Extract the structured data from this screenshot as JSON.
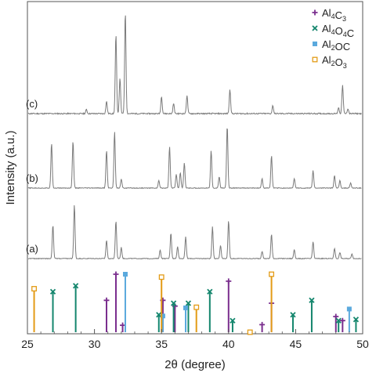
{
  "chart_data": {
    "type": "line",
    "xlabel": "2θ (degree)",
    "ylabel": "Intensity (a.u.)",
    "xlim": [
      25,
      50
    ],
    "x_ticks": [
      "25",
      "30",
      "35",
      "40",
      "45",
      "50"
    ],
    "y_ticks_shown": false,
    "legend_position": "top-right",
    "legend": [
      {
        "key": "al4c3",
        "label_parts": [
          "Al",
          "4",
          "C",
          "3"
        ],
        "marker": "plus",
        "color": "#7a2e8e"
      },
      {
        "key": "al4o4c",
        "label_parts": [
          "Al",
          "4",
          "O",
          "4",
          "C"
        ],
        "marker": "x",
        "color": "#14866d"
      },
      {
        "key": "al2oc",
        "label_parts": [
          "Al",
          "2",
          "OC"
        ],
        "marker": "square-filled",
        "color": "#5aa9dd"
      },
      {
        "key": "al2o3",
        "label_parts": [
          "Al",
          "2",
          "O",
          "3"
        ],
        "marker": "square-open",
        "color": "#e39b16"
      }
    ],
    "series": [
      {
        "name": "(c)",
        "label": "(c)",
        "peaks": [
          [
            29.4,
            0.04
          ],
          [
            30.9,
            0.12
          ],
          [
            31.6,
            0.78
          ],
          [
            31.9,
            0.35
          ],
          [
            32.3,
            1.0
          ],
          [
            35.0,
            0.17
          ],
          [
            35.9,
            0.1
          ],
          [
            36.9,
            0.18
          ],
          [
            40.1,
            0.24
          ],
          [
            43.3,
            0.08
          ],
          [
            48.2,
            0.06
          ],
          [
            48.5,
            0.28
          ],
          [
            48.9,
            0.05
          ]
        ]
      },
      {
        "name": "(b)",
        "label": "(b)",
        "peaks": [
          [
            26.8,
            0.72
          ],
          [
            28.4,
            0.75
          ],
          [
            30.9,
            0.6
          ],
          [
            31.5,
            0.9
          ],
          [
            32.0,
            0.14
          ],
          [
            34.8,
            0.12
          ],
          [
            35.6,
            0.66
          ],
          [
            36.1,
            0.22
          ],
          [
            36.4,
            0.25
          ],
          [
            36.7,
            0.4
          ],
          [
            38.7,
            0.6
          ],
          [
            39.3,
            0.18
          ],
          [
            39.9,
            1.0
          ],
          [
            42.5,
            0.15
          ],
          [
            43.2,
            0.52
          ],
          [
            44.9,
            0.15
          ],
          [
            46.3,
            0.28
          ],
          [
            47.9,
            0.2
          ],
          [
            48.3,
            0.12
          ],
          [
            49.1,
            0.08
          ]
        ]
      },
      {
        "name": "(a)",
        "label": "(a)",
        "peaks": [
          [
            26.9,
            0.55
          ],
          [
            28.5,
            0.88
          ],
          [
            30.9,
            0.3
          ],
          [
            31.6,
            0.62
          ],
          [
            32.0,
            0.18
          ],
          [
            34.9,
            0.14
          ],
          [
            35.7,
            0.42
          ],
          [
            36.2,
            0.2
          ],
          [
            36.8,
            0.36
          ],
          [
            38.8,
            0.52
          ],
          [
            39.4,
            0.22
          ],
          [
            40.0,
            0.62
          ],
          [
            42.5,
            0.12
          ],
          [
            43.2,
            0.4
          ],
          [
            44.9,
            0.15
          ],
          [
            46.3,
            0.28
          ],
          [
            47.9,
            0.17
          ],
          [
            48.3,
            0.1
          ],
          [
            49.2,
            0.08
          ]
        ]
      }
    ],
    "reference_markers": [
      {
        "phase": "al4c3",
        "lines": [
          [
            30.9,
            0.55
          ],
          [
            31.6,
            1.0
          ],
          [
            32.1,
            0.12
          ],
          [
            35.1,
            0.55
          ],
          [
            36.0,
            0.45
          ],
          [
            40.0,
            0.88
          ],
          [
            42.5,
            0.13
          ],
          [
            43.2,
            0.5
          ],
          [
            48.0,
            0.27
          ],
          [
            48.5,
            0.2
          ]
        ]
      },
      {
        "phase": "al4o4c",
        "lines": [
          [
            26.9,
            0.7
          ],
          [
            28.6,
            0.8
          ],
          [
            34.8,
            0.3
          ],
          [
            35.9,
            0.5
          ],
          [
            37.0,
            0.5
          ],
          [
            38.6,
            0.7
          ],
          [
            40.3,
            0.2
          ],
          [
            44.8,
            0.3
          ],
          [
            46.2,
            0.55
          ],
          [
            48.2,
            0.2
          ],
          [
            49.5,
            0.22
          ]
        ]
      },
      {
        "phase": "al2oc",
        "lines": [
          [
            32.3,
            1.0
          ],
          [
            35.1,
            0.28
          ],
          [
            36.8,
            0.42
          ],
          [
            49.0,
            0.4
          ]
        ]
      },
      {
        "phase": "al2o3",
        "lines": [
          [
            25.5,
            0.75
          ],
          [
            35.0,
            0.95
          ],
          [
            37.6,
            0.43
          ],
          [
            41.6,
            0.0
          ],
          [
            43.2,
            1.0
          ]
        ]
      }
    ]
  }
}
